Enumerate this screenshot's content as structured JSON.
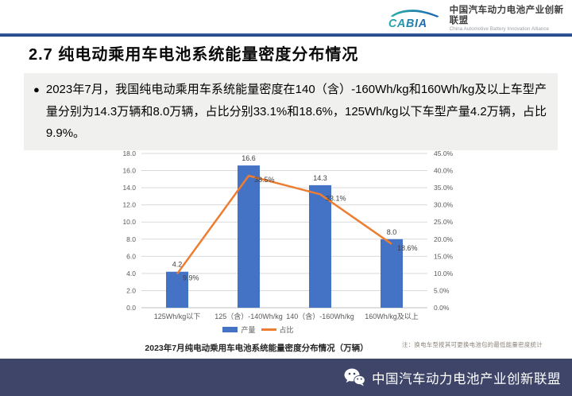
{
  "header": {
    "logo_text": "CABIA",
    "org_cn": "中国汽车动力电池产业创新联盟",
    "org_en": "China Automotive Battery Innovation Alliance"
  },
  "title": "2.7 纯电动乘用车电池系统能量密度分布情况",
  "summary": {
    "bullet": "●",
    "text": "2023年7月，我国纯电动乘用车系统能量密度在140（含）-160Wh/kg和160Wh/kg及以上车型产量分别为14.3万辆和8.0万辆，占比分别33.1%和18.6%，125Wh/kg以下车型产量4.2万辆，占比9.9%。"
  },
  "chart_data": {
    "type": "bar",
    "subtype": "bar+line combo, dual axis",
    "categories": [
      "125Wh/kg以下",
      "125（含）-140Wh/kg",
      "140（含）-160Wh/kg",
      "160Wh/kg及以上"
    ],
    "series": [
      {
        "name": "产量",
        "type": "bar",
        "axis": "left",
        "color": "#4472C4",
        "values": [
          4.2,
          16.6,
          14.3,
          8.0
        ],
        "labels": [
          "4.2",
          "16.6",
          "14.3",
          "8.0"
        ]
      },
      {
        "name": "占比",
        "type": "line",
        "axis": "right",
        "color": "#ED7D31",
        "values": [
          9.9,
          38.5,
          33.1,
          18.6
        ],
        "labels": [
          "9.9%",
          "38.5%",
          "33.1%",
          "18.6%"
        ]
      }
    ],
    "y_left": {
      "min": 0,
      "max": 18,
      "ticks": [
        "0.0",
        "2.0",
        "4.0",
        "6.0",
        "8.0",
        "10.0",
        "12.0",
        "14.0",
        "16.0",
        "18.0"
      ]
    },
    "y_right": {
      "min": 0,
      "max": 45,
      "ticks": [
        "0.0%",
        "5.0%",
        "10.0%",
        "15.0%",
        "20.0%",
        "25.0%",
        "30.0%",
        "35.0%",
        "40.0%",
        "45.0%"
      ]
    },
    "grid": true,
    "legend_position": "bottom",
    "caption": "2023年7月纯电动乘用车电池系统能量密度分布情况（万辆）",
    "note": "注：换电车型按其可更换电池包的最低能量密度统计"
  },
  "footer": {
    "text": "中国汽车动力电池产业创新联盟",
    "bg_color": "#3E4568"
  },
  "colors": {
    "bar_blue": "#4472C4",
    "line_orange": "#ED7D31",
    "top_rule_blue": "#2B4F93",
    "gridline": "#d9d9d9",
    "axis_text": "#595959",
    "summary_bg": "#f0f0ef",
    "logo_teal": "#28AFAE",
    "logo_blue": "#1E63B0"
  }
}
